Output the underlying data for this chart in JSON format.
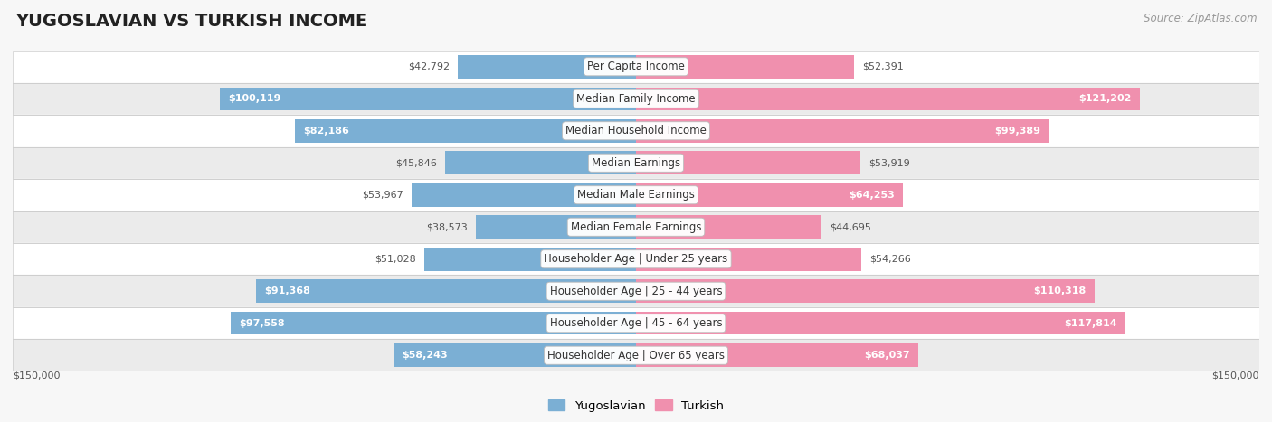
{
  "title": "YUGOSLAVIAN VS TURKISH INCOME",
  "source": "Source: ZipAtlas.com",
  "categories": [
    "Per Capita Income",
    "Median Family Income",
    "Median Household Income",
    "Median Earnings",
    "Median Male Earnings",
    "Median Female Earnings",
    "Householder Age | Under 25 years",
    "Householder Age | 25 - 44 years",
    "Householder Age | 45 - 64 years",
    "Householder Age | Over 65 years"
  ],
  "yugoslav_values": [
    42792,
    100119,
    82186,
    45846,
    53967,
    38573,
    51028,
    91368,
    97558,
    58243
  ],
  "turkish_values": [
    52391,
    121202,
    99389,
    53919,
    64253,
    44695,
    54266,
    110318,
    117814,
    68037
  ],
  "yugoslav_labels": [
    "$42,792",
    "$100,119",
    "$82,186",
    "$45,846",
    "$53,967",
    "$38,573",
    "$51,028",
    "$91,368",
    "$97,558",
    "$58,243"
  ],
  "turkish_labels": [
    "$52,391",
    "$121,202",
    "$99,389",
    "$53,919",
    "$64,253",
    "$44,695",
    "$54,266",
    "$110,318",
    "$117,814",
    "$68,037"
  ],
  "max_value": 150000,
  "yugoslav_color": "#7bafd4",
  "turkish_color": "#f090ae",
  "bar_height": 0.72,
  "bg_color": "#f7f7f7",
  "row_colors": [
    "#ffffff",
    "#ebebeb"
  ],
  "label_white": "#ffffff",
  "label_dark": "#555555",
  "inside_threshold": 55000,
  "category_fontsize": 8.5,
  "label_fontsize": 8.0,
  "title_fontsize": 14,
  "source_fontsize": 8.5,
  "legend_fontsize": 9.5
}
